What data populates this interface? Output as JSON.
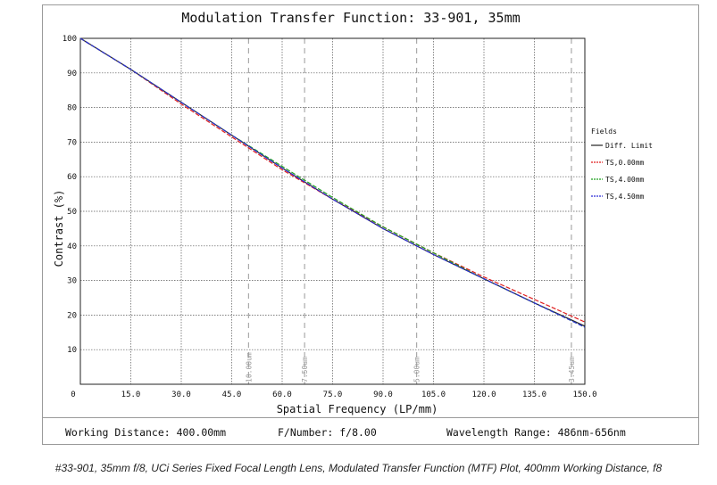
{
  "chart_data": {
    "type": "line",
    "title": "Modulation Transfer Function: 33-901, 35mm",
    "xlabel": "Spatial Frequency (LP/mm)",
    "ylabel": "Contrast (%)",
    "xlim": [
      0,
      150
    ],
    "ylim": [
      0,
      100
    ],
    "x_ticks": [
      "0",
      "15.0",
      "30.0",
      "45.0",
      "60.0",
      "75.0",
      "90.0",
      "105.0",
      "120.0",
      "135.0",
      "150.0"
    ],
    "y_ticks": [
      "100",
      "90",
      "80",
      "70",
      "60",
      "50",
      "40",
      "30",
      "20",
      "10"
    ],
    "reference_lines": [
      {
        "x": 50.0,
        "label": "10.00um"
      },
      {
        "x": 66.67,
        "label": "7.50um"
      },
      {
        "x": 100.0,
        "label": "5.00um"
      },
      {
        "x": 146.0,
        "label": "3.45um"
      }
    ],
    "legend_title": "Fields",
    "series": [
      {
        "name": "Diff. Limit",
        "color": "#222222",
        "dash": "solid",
        "x": [
          0,
          15,
          30,
          45,
          60,
          75,
          90,
          105,
          120,
          135,
          150
        ],
        "y": [
          100,
          91,
          81.5,
          72,
          62.5,
          53.5,
          45,
          37.5,
          30.5,
          23.5,
          16.8
        ]
      },
      {
        "name": "TS,0.00mm",
        "color": "#e01e1e",
        "dash": "dashed",
        "x": [
          0,
          15,
          30,
          45,
          60,
          75,
          90,
          105,
          120,
          135,
          150
        ],
        "y": [
          100,
          91,
          81,
          71.5,
          62,
          53.5,
          45.5,
          38,
          31,
          24.5,
          18
        ]
      },
      {
        "name": "TS,4.00mm",
        "color": "#1fa01f",
        "dash": "dashed",
        "x": [
          0,
          15,
          30,
          45,
          60,
          75,
          90,
          105,
          120,
          135,
          150
        ],
        "y": [
          100,
          91,
          81.5,
          72,
          63,
          54,
          45.5,
          38,
          30.5,
          23.5,
          16.5
        ]
      },
      {
        "name": "TS,4.50mm",
        "color": "#2c2cd6",
        "dash": "dashed",
        "x": [
          0,
          15,
          30,
          45,
          60,
          75,
          90,
          105,
          120,
          135,
          150
        ],
        "y": [
          100,
          91,
          81.5,
          72,
          62.5,
          53.5,
          45,
          37.5,
          30.5,
          23.5,
          16.5
        ]
      }
    ]
  },
  "info": {
    "working_distance": "Working Distance: 400.00mm",
    "f_number": "F/Number: f/8.00",
    "wavelength": "Wavelength Range: 486nm-656nm"
  },
  "caption": "#33-901, 35mm f/8, UCi Series Fixed Focal Length Lens, Modulated Transfer Function (MTF) Plot, 400mm Working Distance, f8"
}
